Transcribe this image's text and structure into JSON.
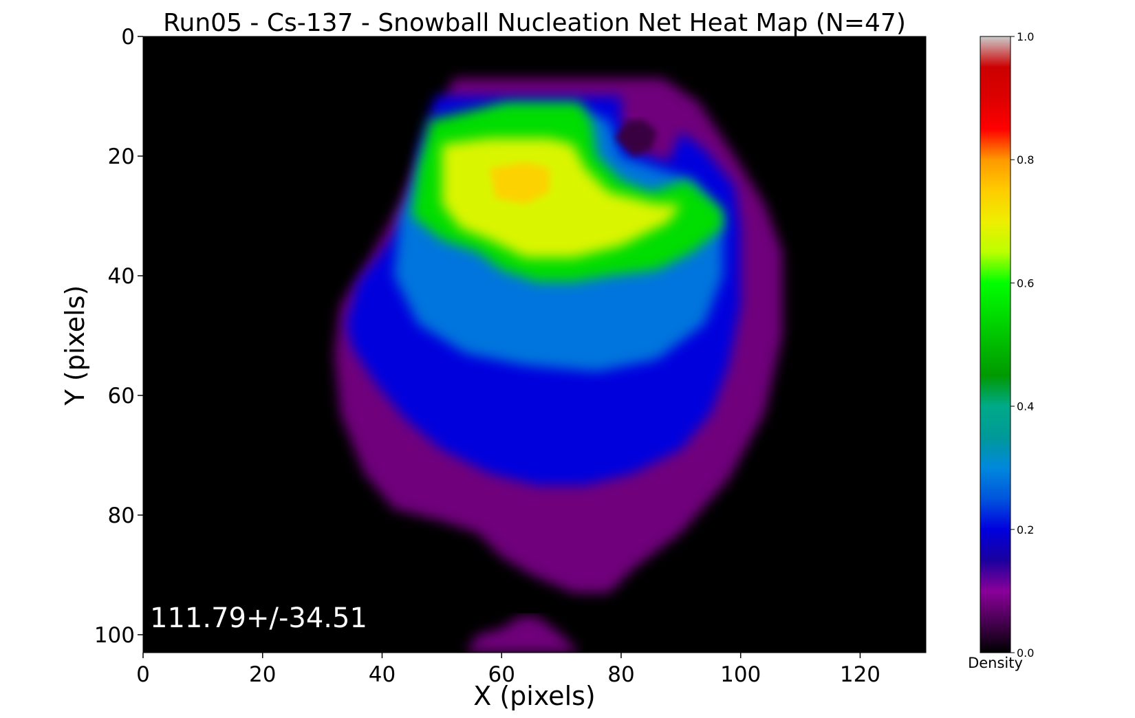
{
  "chart_data": {
    "type": "heatmap",
    "title": "Run05 - Cs-137 - Snowball Nucleation Net Heat Map (N=47)",
    "xlabel": "X (pixels)",
    "ylabel": "Y (pixels)",
    "xlim": [
      0,
      131
    ],
    "ylim": [
      103,
      0
    ],
    "xticks": [
      0,
      20,
      40,
      60,
      80,
      100,
      120
    ],
    "yticks": [
      0,
      20,
      40,
      60,
      80,
      100
    ],
    "annotation": "111.79+/-34.51",
    "colorbar": {
      "label": "Density",
      "range": [
        0,
        1
      ],
      "ticks": [
        "0.0",
        "0.2",
        "0.4",
        "0.6",
        "0.8",
        "1.0"
      ],
      "colormap": "nipy_spectral",
      "stops": [
        {
          "v": 0.0,
          "color": "#000000"
        },
        {
          "v": 0.05,
          "color": "#470051"
        },
        {
          "v": 0.1,
          "color": "#8a0099"
        },
        {
          "v": 0.15,
          "color": "#1a009e"
        },
        {
          "v": 0.2,
          "color": "#0000dd"
        },
        {
          "v": 0.25,
          "color": "#0055dd"
        },
        {
          "v": 0.3,
          "color": "#0088dd"
        },
        {
          "v": 0.35,
          "color": "#009999"
        },
        {
          "v": 0.4,
          "color": "#00aa88"
        },
        {
          "v": 0.45,
          "color": "#009900"
        },
        {
          "v": 0.5,
          "color": "#00bb00"
        },
        {
          "v": 0.55,
          "color": "#00dd00"
        },
        {
          "v": 0.6,
          "color": "#00ff00"
        },
        {
          "v": 0.65,
          "color": "#bbff00"
        },
        {
          "v": 0.7,
          "color": "#eeee00"
        },
        {
          "v": 0.75,
          "color": "#ffcc00"
        },
        {
          "v": 0.8,
          "color": "#ff9900"
        },
        {
          "v": 0.85,
          "color": "#ff0000"
        },
        {
          "v": 0.9,
          "color": "#dd0000"
        },
        {
          "v": 0.95,
          "color": "#cc0000"
        },
        {
          "v": 1.0,
          "color": "#cccccc"
        }
      ]
    },
    "regions": [
      {
        "name": "outer-halo",
        "level": 0.08,
        "outline": [
          [
            52,
            7
          ],
          [
            87,
            7
          ],
          [
            93,
            11
          ],
          [
            99,
            20
          ],
          [
            104,
            28
          ],
          [
            107,
            36
          ],
          [
            107,
            50
          ],
          [
            104,
            63
          ],
          [
            98,
            74
          ],
          [
            90,
            83
          ],
          [
            82,
            89
          ],
          [
            78,
            93
          ],
          [
            72,
            93
          ],
          [
            65,
            90
          ],
          [
            60,
            87
          ],
          [
            56,
            83
          ],
          [
            50,
            81
          ],
          [
            42,
            79
          ],
          [
            37,
            73
          ],
          [
            33,
            63
          ],
          [
            32,
            53
          ],
          [
            33,
            45
          ],
          [
            38,
            37
          ],
          [
            43,
            28
          ],
          [
            47,
            18
          ]
        ]
      },
      {
        "name": "lower-tail",
        "level": 0.08,
        "outline": [
          [
            54,
            103
          ],
          [
            56,
            100
          ],
          [
            60,
            99
          ],
          [
            63,
            97
          ],
          [
            66,
            97
          ],
          [
            70,
            100
          ],
          [
            73,
            103
          ]
        ]
      },
      {
        "name": "blue-core",
        "level": 0.2,
        "outline": [
          [
            49,
            10
          ],
          [
            80,
            10
          ],
          [
            80,
            14
          ],
          [
            82,
            19
          ],
          [
            88,
            21
          ],
          [
            90,
            16
          ],
          [
            94,
            19
          ],
          [
            99,
            25
          ],
          [
            100,
            32
          ],
          [
            100,
            45
          ],
          [
            98,
            55
          ],
          [
            95,
            63
          ],
          [
            90,
            69
          ],
          [
            82,
            73
          ],
          [
            74,
            75
          ],
          [
            66,
            75
          ],
          [
            58,
            73
          ],
          [
            50,
            69
          ],
          [
            44,
            64
          ],
          [
            39,
            58
          ],
          [
            35,
            52
          ],
          [
            34,
            48
          ],
          [
            36,
            41
          ],
          [
            40,
            36
          ],
          [
            45,
            29
          ],
          [
            46,
            19
          ]
        ]
      },
      {
        "name": "light-blue",
        "level": 0.28,
        "outline": [
          [
            48,
            18
          ],
          [
            60,
            12
          ],
          [
            72,
            12
          ],
          [
            78,
            14
          ],
          [
            80,
            20
          ],
          [
            86,
            22
          ],
          [
            92,
            24
          ],
          [
            97,
            30
          ],
          [
            97,
            40
          ],
          [
            94,
            48
          ],
          [
            86,
            54
          ],
          [
            76,
            56
          ],
          [
            64,
            55
          ],
          [
            54,
            53
          ],
          [
            46,
            48
          ],
          [
            42,
            40
          ],
          [
            43,
            30
          ]
        ]
      },
      {
        "name": "green-band",
        "level": 0.55,
        "outline": [
          [
            48,
            14
          ],
          [
            61,
            11
          ],
          [
            73,
            11
          ],
          [
            75,
            14
          ],
          [
            76,
            20
          ],
          [
            80,
            24
          ],
          [
            85,
            26
          ],
          [
            91,
            24
          ],
          [
            97,
            29
          ],
          [
            97,
            32
          ],
          [
            92,
            36
          ],
          [
            86,
            39
          ],
          [
            78,
            40
          ],
          [
            72,
            41
          ],
          [
            66,
            41
          ],
          [
            60,
            39
          ],
          [
            56,
            36
          ],
          [
            50,
            34
          ],
          [
            45,
            30
          ],
          [
            46,
            22
          ]
        ]
      },
      {
        "name": "yellow-core",
        "level": 0.68,
        "outline": [
          [
            50,
            18
          ],
          [
            58,
            17
          ],
          [
            68,
            17
          ],
          [
            72,
            18
          ],
          [
            74,
            22
          ],
          [
            78,
            26
          ],
          [
            86,
            28
          ],
          [
            90,
            28
          ],
          [
            88,
            31
          ],
          [
            80,
            35
          ],
          [
            72,
            37
          ],
          [
            64,
            37
          ],
          [
            58,
            34
          ],
          [
            53,
            32
          ],
          [
            50,
            28
          ]
        ]
      },
      {
        "name": "orange-peak",
        "level": 0.74,
        "outline": [
          [
            58,
            22
          ],
          [
            64,
            21
          ],
          [
            68,
            22
          ],
          [
            68,
            26
          ],
          [
            64,
            28
          ],
          [
            59,
            27
          ]
        ]
      },
      {
        "name": "dark-notch",
        "level": 0.04,
        "outline": [
          [
            79,
            17
          ],
          [
            81,
            14
          ],
          [
            84,
            14
          ],
          [
            86,
            16
          ],
          [
            85,
            19
          ],
          [
            82,
            20
          ]
        ]
      }
    ]
  }
}
